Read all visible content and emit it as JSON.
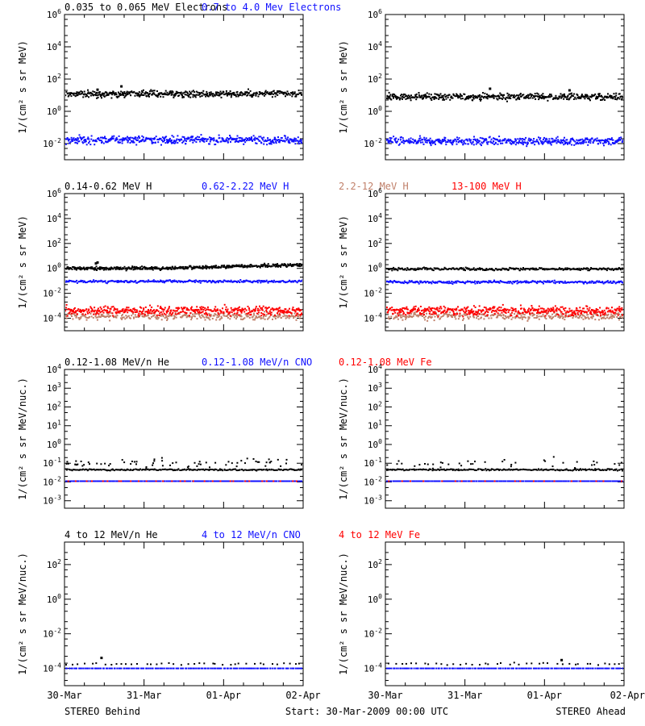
{
  "colors": {
    "black": "#000000",
    "blue": "#1010ff",
    "tan": "#c0806a",
    "red": "#ff0000"
  },
  "footer": {
    "left": "STEREO Behind",
    "center": "Start: 30-Mar-2009 00:00 UTC",
    "right": "STEREO Ahead"
  },
  "chart_data": [
    {
      "type": "scatter",
      "row": 0,
      "side": "behind",
      "ylabel": "1/(cm² s sr MeV)",
      "yscale": "log",
      "ylim": [
        0.001,
        1000000
      ],
      "tick_exponents": [
        -2,
        0,
        2,
        4,
        6
      ],
      "x_ticks": [
        "30-Mar",
        "31-Mar",
        "01-Apr",
        "02-Apr"
      ],
      "xlim_days": [
        0,
        3
      ],
      "series": [
        {
          "name": "0.035 to 0.065 MeV Electrons",
          "color": "black",
          "level": 12,
          "scatter_dex": 0.1,
          "points": 300,
          "spikes": [
            [
              0.7,
              35
            ],
            [
              0.4,
              22
            ]
          ]
        },
        {
          "name": "0.7 to 4.0 Mev Electrons",
          "color": "blue",
          "level": 0.017,
          "scatter_dex": 0.12,
          "points": 300
        }
      ]
    },
    {
      "type": "scatter",
      "row": 0,
      "side": "ahead",
      "ylabel": "1/(cm² s sr MeV)",
      "yscale": "log",
      "ylim": [
        0.001,
        1000000
      ],
      "tick_exponents": [
        -2,
        0,
        2,
        4,
        6
      ],
      "x_ticks": [
        "30-Mar",
        "31-Mar",
        "01-Apr",
        "02-Apr"
      ],
      "xlim_days": [
        0,
        3
      ],
      "series": [
        {
          "name": "0.035 to 0.065 MeV Electrons",
          "color": "black",
          "level": 8,
          "scatter_dex": 0.1,
          "points": 300,
          "spikes": [
            [
              1.3,
              25
            ],
            [
              2.3,
              20
            ]
          ]
        },
        {
          "name": "0.7 to 4.0 Mev Electrons",
          "color": "blue",
          "level": 0.014,
          "scatter_dex": 0.12,
          "points": 300
        }
      ]
    },
    {
      "type": "scatter",
      "row": 1,
      "side": "behind",
      "ylabel": "1/(cm² s sr MeV)",
      "yscale": "log",
      "ylim": [
        1e-05,
        1000000
      ],
      "tick_exponents": [
        -4,
        -2,
        0,
        2,
        4,
        6
      ],
      "x_ticks": [
        "30-Mar",
        "31-Mar",
        "01-Apr",
        "02-Apr"
      ],
      "xlim_days": [
        0,
        3
      ],
      "series": [
        {
          "name": "0.14-0.62 MeV H",
          "color": "black",
          "level": 1.0,
          "level_end": 2.0,
          "scatter_dex": 0.06,
          "points": 300,
          "spikes": [
            [
              0.4,
              3
            ],
            [
              0.38,
              2.5
            ]
          ]
        },
        {
          "name": "0.62-2.22 MeV H",
          "color": "blue",
          "level": 0.09,
          "scatter_dex": 0.05,
          "points": 300
        },
        {
          "name": "2.2-12 MeV H",
          "color": "tan",
          "level": 0.00015,
          "scatter_dex": 0.15,
          "points": 200
        },
        {
          "name": "13-100 MeV H",
          "color": "red",
          "level": 0.0004,
          "scatter_dex": 0.18,
          "points": 300
        }
      ]
    },
    {
      "type": "scatter",
      "row": 1,
      "side": "ahead",
      "ylabel": "1/(cm² s sr MeV)",
      "yscale": "log",
      "ylim": [
        1e-05,
        1000000
      ],
      "tick_exponents": [
        -4,
        -2,
        0,
        2,
        4,
        6
      ],
      "x_ticks": [
        "30-Mar",
        "31-Mar",
        "01-Apr",
        "02-Apr"
      ],
      "xlim_days": [
        0,
        3
      ],
      "series": [
        {
          "name": "0.14-0.62 MeV H",
          "color": "black",
          "level": 0.9,
          "scatter_dex": 0.05,
          "points": 300
        },
        {
          "name": "0.62-2.22 MeV H",
          "color": "blue",
          "level": 0.08,
          "scatter_dex": 0.05,
          "points": 300
        },
        {
          "name": "2.2-12 MeV H",
          "color": "tan",
          "level": 0.00015,
          "scatter_dex": 0.15,
          "points": 200
        },
        {
          "name": "13-100 MeV H",
          "color": "red",
          "level": 0.0004,
          "scatter_dex": 0.18,
          "points": 300
        }
      ]
    },
    {
      "type": "scatter",
      "row": 2,
      "side": "behind",
      "ylabel": "1/(cm² s sr MeV/nuc.)",
      "yscale": "log",
      "ylim": [
        0.0004,
        10000
      ],
      "tick_exponents": [
        -3,
        -2,
        -1,
        0,
        1,
        2,
        3,
        4
      ],
      "x_ticks": [
        "30-Mar",
        "31-Mar",
        "01-Apr",
        "02-Apr"
      ],
      "xlim_days": [
        0,
        3
      ],
      "series": [
        {
          "name": "0.12-1.08 MeV/n He",
          "color": "black",
          "level": 0.045,
          "scatter_dex": 0.02,
          "points": 220,
          "upper_level": 0.1,
          "upper_count": 70
        },
        {
          "name": "0.12-1.08 MeV/n CNO",
          "color": "blue",
          "level": 0.011,
          "scatter_dex": 0.0,
          "points": 200
        },
        {
          "name": "0.12-1.08 MeV Fe",
          "color": "red",
          "level": 0.011,
          "scatter_dex": 0.0,
          "points": 30
        }
      ]
    },
    {
      "type": "scatter",
      "row": 2,
      "side": "ahead",
      "ylabel": "1/(cm² s sr MeV/nuc.)",
      "yscale": "log",
      "ylim": [
        0.0004,
        10000
      ],
      "tick_exponents": [
        -3,
        -2,
        -1,
        0,
        1,
        2,
        3,
        4
      ],
      "x_ticks": [
        "30-Mar",
        "31-Mar",
        "01-Apr",
        "02-Apr"
      ],
      "xlim_days": [
        0,
        3
      ],
      "series": [
        {
          "name": "0.12-1.08 MeV/n He",
          "color": "black",
          "level": 0.045,
          "scatter_dex": 0.02,
          "points": 220,
          "upper_level": 0.1,
          "upper_count": 40
        },
        {
          "name": "0.12-1.08 MeV/n CNO",
          "color": "blue",
          "level": 0.011,
          "scatter_dex": 0.0,
          "points": 200
        },
        {
          "name": "0.12-1.08 MeV Fe",
          "color": "red",
          "level": 0.011,
          "scatter_dex": 0.0,
          "points": 20
        }
      ]
    },
    {
      "type": "scatter",
      "row": 3,
      "side": "behind",
      "ylabel": "1/(cm² s sr MeV/nuc.)",
      "yscale": "log",
      "ylim": [
        1e-05,
        2000
      ],
      "tick_exponents": [
        -4,
        -2,
        0,
        2
      ],
      "x_ticks": [
        "30-Mar",
        "31-Mar",
        "01-Apr",
        "02-Apr"
      ],
      "xlim_days": [
        0,
        3
      ],
      "series": [
        {
          "name": "4 to 12 MeV/n He",
          "color": "black",
          "level": 0.00018,
          "scatter_dex": 0.03,
          "points": 40,
          "spikes": [
            [
              0.45,
              0.0004
            ]
          ]
        },
        {
          "name": "4 to 12 MeV/n CNO",
          "color": "blue",
          "level": 0.0001,
          "scatter_dex": 0.0,
          "points": 150
        },
        {
          "name": "4 to 12 MeV Fe",
          "color": "red",
          "level": 1e-05,
          "scatter_dex": 0.0,
          "points": 0
        }
      ]
    },
    {
      "type": "scatter",
      "row": 3,
      "side": "ahead",
      "ylabel": "1/(cm² s sr MeV/nuc.)",
      "yscale": "log",
      "ylim": [
        1e-05,
        2000
      ],
      "tick_exponents": [
        -4,
        -2,
        0,
        2
      ],
      "x_ticks": [
        "30-Mar",
        "31-Mar",
        "01-Apr",
        "02-Apr"
      ],
      "xlim_days": [
        0,
        3
      ],
      "series": [
        {
          "name": "4 to 12 MeV/n He",
          "color": "black",
          "level": 0.00018,
          "scatter_dex": 0.03,
          "points": 40,
          "spikes": [
            [
              2.2,
              0.0003
            ]
          ]
        },
        {
          "name": "4 to 12 MeV/n CNO",
          "color": "blue",
          "level": 0.0001,
          "scatter_dex": 0.0,
          "points": 150
        },
        {
          "name": "4 to 12 MeV Fe",
          "color": "red",
          "level": 1e-05,
          "scatter_dex": 0.0,
          "points": 0
        }
      ]
    }
  ]
}
